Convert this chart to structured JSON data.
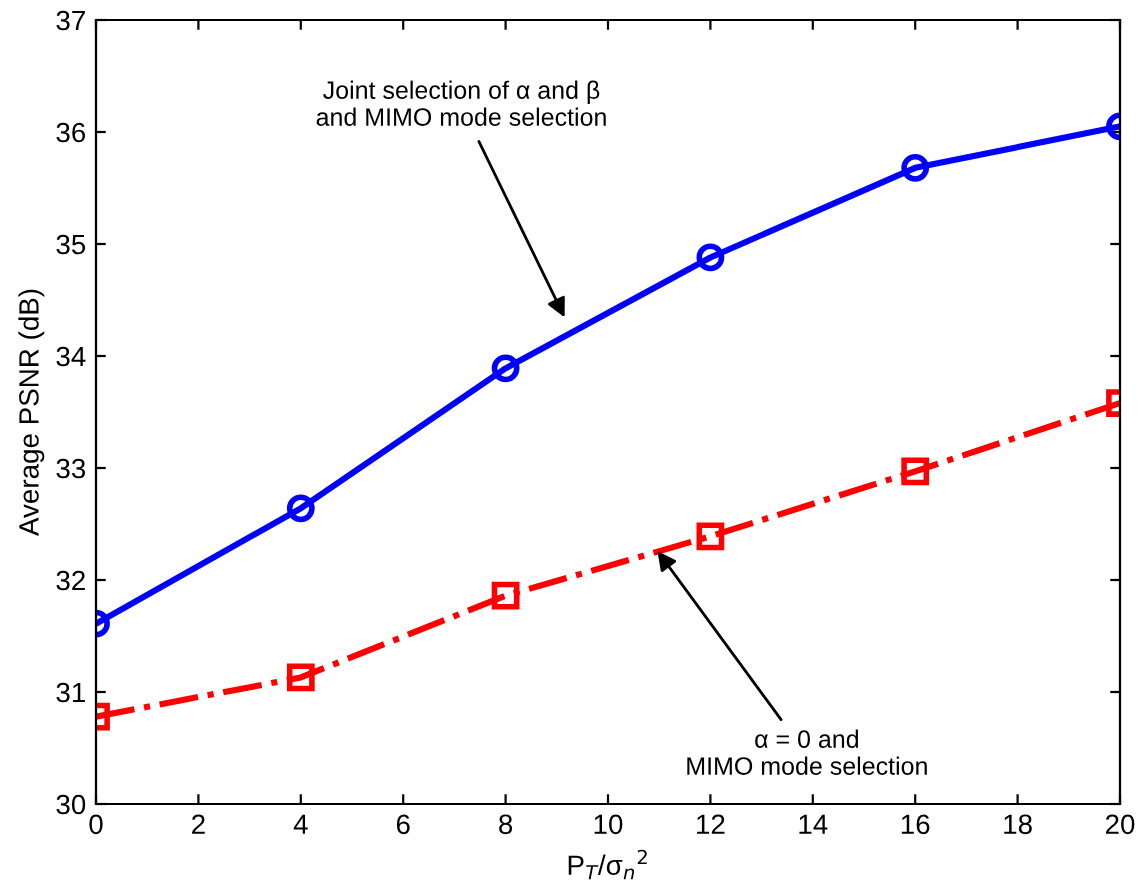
{
  "chart_data": {
    "type": "line",
    "xlabel": "P$_{T}$/σ$_{n}$$^{2}$",
    "ylabel": "Average PSNR (dB)",
    "x": [
      0,
      4,
      8,
      12,
      16,
      20
    ],
    "series": [
      {
        "color": "#0000ff",
        "marker": "circle",
        "line_style": "solid",
        "values": [
          31.61,
          32.64,
          33.89,
          34.88,
          35.68,
          36.05
        ]
      },
      {
        "color": "#ff0000",
        "marker": "square",
        "line_style": "dashdot",
        "values": [
          30.78,
          31.13,
          31.86,
          32.39,
          32.97,
          33.58
        ]
      }
    ],
    "annotations": [
      {
        "text": "Joint selection of α and β\nand MIMO mode selection",
        "x": 9.2,
        "y": 34.3
      },
      {
        "text": "α = 0 and\nMIMO mode selection",
        "x": 10.9,
        "y": 32.3
      }
    ],
    "xlim": [
      0,
      20
    ],
    "ylim": [
      30,
      37
    ],
    "xticks": [
      0,
      2,
      4,
      6,
      8,
      10,
      12,
      14,
      16,
      18,
      20
    ],
    "yticks": [
      30,
      31,
      32,
      33,
      34,
      35,
      36,
      37
    ],
    "grid": false,
    "legend": false
  }
}
